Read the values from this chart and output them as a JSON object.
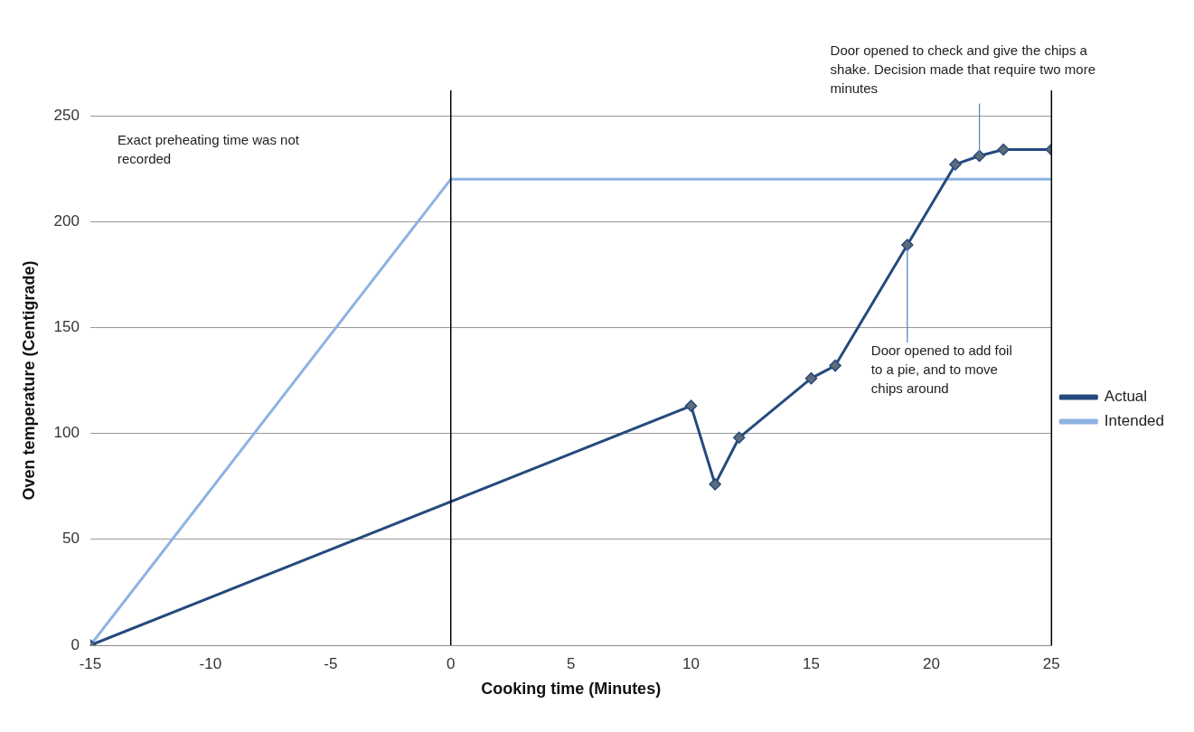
{
  "chart_data": {
    "type": "line",
    "xlabel": "Cooking time (Minutes)",
    "ylabel": "Oven temperature (Centigrade)",
    "xlim": [
      -15,
      25
    ],
    "xticks": [
      -15,
      -10,
      -5,
      0,
      5,
      10,
      15,
      20,
      25
    ],
    "ylim": [
      0,
      250
    ],
    "yticks": [
      0,
      50,
      100,
      150,
      200,
      250
    ],
    "grid": "y",
    "legend": "right",
    "series": [
      {
        "name": "Actual",
        "color": "#254a7c",
        "marker": "diamond",
        "x": [
          -15,
          10,
          11,
          12,
          15,
          16,
          19,
          21,
          22,
          23,
          25
        ],
        "values": [
          0,
          113,
          76,
          98,
          126,
          132,
          189,
          227,
          231,
          234,
          234
        ]
      },
      {
        "name": "Intended",
        "color": "#8db3e2",
        "marker": "none",
        "x": [
          -15,
          0,
          25
        ],
        "values": [
          0,
          220,
          220
        ]
      }
    ],
    "ref_lines": [
      {
        "axis": "x",
        "value": 0,
        "color": "#000000"
      },
      {
        "axis": "x",
        "value": 25,
        "color": "#000000"
      }
    ],
    "annotations": [
      "Exact preheating time was not recorded",
      {
        "text": "Door opened to add foil to a pie, and to move chips around",
        "x": 19,
        "y": 189
      },
      {
        "text": "Door opened to check and give the chips a shake. Decision made that require two more minutes",
        "x": 22,
        "y": 231
      }
    ]
  }
}
